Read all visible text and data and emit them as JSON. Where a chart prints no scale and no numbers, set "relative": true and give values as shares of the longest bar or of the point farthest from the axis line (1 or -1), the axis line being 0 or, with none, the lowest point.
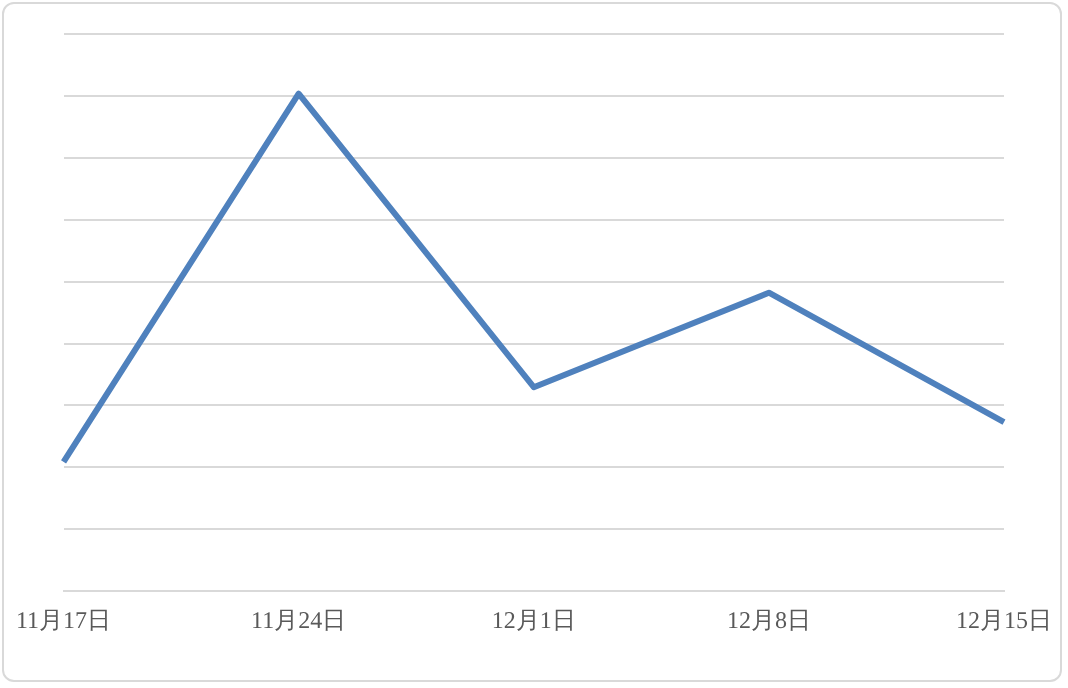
{
  "chart_data": {
    "type": "line",
    "relative": true,
    "categories": [
      "11月17日",
      "11月24日",
      "12月1日",
      "12月8日",
      "12月15日"
    ],
    "series": [
      {
        "color": "#4f81bd",
        "values": [
          0.26,
          1,
          0.41,
          0.6,
          0.34
        ]
      }
    ],
    "grid": "y",
    "legend": false,
    "marker": "none",
    "line_style": "solid"
  }
}
